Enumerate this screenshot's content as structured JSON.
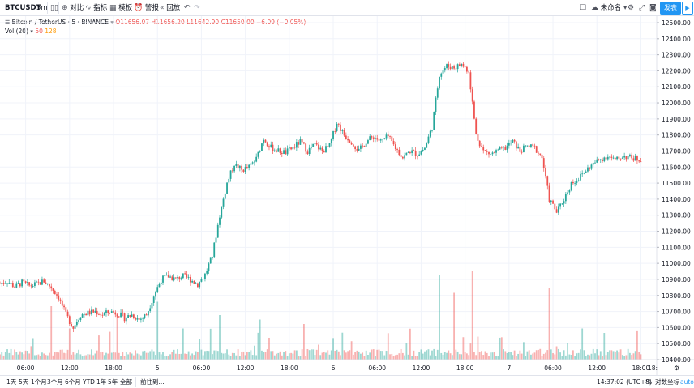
{
  "toolbar": {
    "symbol": "BTCUSDT",
    "interval": "5m",
    "compare_label": "对比",
    "indicators_label": "指标",
    "templates_label": "模板",
    "alert_label": "警报",
    "replay_label": "回放",
    "unnamed_label": "未命名",
    "publish_label": "发表"
  },
  "legend": {
    "title": "Bitcoin / TetherUS · 5 · BINANCE",
    "open": "O11656.07",
    "high": "H11656.20",
    "low": "L11642.90",
    "close": "C11650.00",
    "change": "−6.09 (−0.05%)",
    "volume_label": "Vol (20)",
    "volume_value": "50",
    "volume_ma": "128"
  },
  "colors": {
    "up": "#26a69a",
    "down": "#ef5350",
    "grid": "#f0f3fa",
    "accent": "#2196f3"
  },
  "chart_data": {
    "type": "candlestick",
    "y_range": [
      10350,
      12550
    ],
    "y_ticks": [
      "12500.00",
      "12400.00",
      "12300.00",
      "12200.00",
      "12100.00",
      "12000.00",
      "11900.00",
      "11800.00",
      "11700.00",
      "11600.00",
      "11500.00",
      "11400.00",
      "11300.00",
      "11200.00",
      "11100.00",
      "11000.00",
      "10900.00",
      "10800.00",
      "10700.00",
      "10600.00",
      "10500.00",
      "10400.00"
    ],
    "y_tick_values": [
      12500,
      12400,
      12300,
      12200,
      12100,
      12000,
      11900,
      11800,
      11700,
      11600,
      11500,
      11400,
      11300,
      11200,
      11100,
      11000,
      10900,
      10800,
      10700,
      10600,
      10500,
      10400
    ],
    "x_tick_labels": [
      "06:00",
      "12:00",
      "18:00",
      "5",
      "06:00",
      "12:00",
      "18:00",
      "6",
      "06:00",
      "12:00",
      "18:00",
      "7",
      "06:00",
      "12:00",
      "18:00"
    ],
    "x_tick_hours": [
      6,
      12,
      18,
      24,
      30,
      36,
      42,
      48,
      54,
      60,
      66,
      72,
      78,
      84,
      90
    ],
    "x_range_hours": [
      2.5,
      91.5
    ],
    "close_path": [
      [
        2.5,
        10875
      ],
      [
        3.5,
        10890
      ],
      [
        4.5,
        10855
      ],
      [
        5.5,
        10880
      ],
      [
        6.5,
        10860
      ],
      [
        7.5,
        10870
      ],
      [
        8.5,
        10890
      ],
      [
        9.5,
        10850
      ],
      [
        10.5,
        10790
      ],
      [
        11.5,
        10680
      ],
      [
        12.5,
        10600
      ],
      [
        13.5,
        10680
      ],
      [
        14.5,
        10690
      ],
      [
        15.5,
        10700
      ],
      [
        16.5,
        10680
      ],
      [
        17.5,
        10700
      ],
      [
        18.5,
        10690
      ],
      [
        19.5,
        10660
      ],
      [
        20.5,
        10680
      ],
      [
        21.5,
        10650
      ],
      [
        22.5,
        10680
      ],
      [
        23.5,
        10800
      ],
      [
        24.5,
        10900
      ],
      [
        25.5,
        10920
      ],
      [
        26.5,
        10900
      ],
      [
        27.5,
        10920
      ],
      [
        28.5,
        10900
      ],
      [
        29.5,
        10870
      ],
      [
        30.5,
        10930
      ],
      [
        31.5,
        11050
      ],
      [
        32.5,
        11300
      ],
      [
        33.5,
        11500
      ],
      [
        34.5,
        11620
      ],
      [
        35.5,
        11580
      ],
      [
        36.5,
        11600
      ],
      [
        37.5,
        11650
      ],
      [
        38.5,
        11780
      ],
      [
        39.5,
        11720
      ],
      [
        40.5,
        11700
      ],
      [
        41.5,
        11690
      ],
      [
        42.5,
        11720
      ],
      [
        43.5,
        11760
      ],
      [
        44.5,
        11700
      ],
      [
        45.5,
        11740
      ],
      [
        46.5,
        11700
      ],
      [
        47.5,
        11730
      ],
      [
        48.5,
        11880
      ],
      [
        49.5,
        11800
      ],
      [
        50.5,
        11760
      ],
      [
        51.5,
        11700
      ],
      [
        52.5,
        11760
      ],
      [
        53.5,
        11790
      ],
      [
        54.5,
        11760
      ],
      [
        55.5,
        11790
      ],
      [
        56.5,
        11720
      ],
      [
        57.5,
        11660
      ],
      [
        58.5,
        11700
      ],
      [
        59.5,
        11680
      ],
      [
        60.5,
        11720
      ],
      [
        61.5,
        11850
      ],
      [
        62.5,
        12180
      ],
      [
        63.5,
        12230
      ],
      [
        64.5,
        12220
      ],
      [
        65.5,
        12240
      ],
      [
        66.5,
        12200
      ],
      [
        67.5,
        11800
      ],
      [
        68.5,
        11700
      ],
      [
        69.5,
        11680
      ],
      [
        70.5,
        11700
      ],
      [
        71.5,
        11720
      ],
      [
        72.5,
        11760
      ],
      [
        73.5,
        11700
      ],
      [
        74.5,
        11730
      ],
      [
        75.5,
        11720
      ],
      [
        76.5,
        11660
      ],
      [
        77.5,
        11400
      ],
      [
        78.5,
        11320
      ],
      [
        79.5,
        11400
      ],
      [
        80.5,
        11500
      ],
      [
        81.5,
        11530
      ],
      [
        82.5,
        11580
      ],
      [
        83.5,
        11620
      ],
      [
        84.5,
        11650
      ],
      [
        85.5,
        11670
      ],
      [
        86.5,
        11640
      ],
      [
        87.5,
        11670
      ],
      [
        88.5,
        11660
      ],
      [
        89.5,
        11650
      ]
    ],
    "volume_spikes": [
      [
        9.5,
        0.6
      ],
      [
        12,
        0.35
      ],
      [
        18.5,
        0.5
      ],
      [
        24,
        0.65
      ],
      [
        27.5,
        0.35
      ],
      [
        32.5,
        0.5
      ],
      [
        38,
        0.45
      ],
      [
        44,
        0.4
      ],
      [
        58,
        0.85
      ],
      [
        62.5,
        0.95
      ],
      [
        64.5,
        0.75
      ],
      [
        67,
        1.0
      ],
      [
        77.5,
        0.8
      ],
      [
        82,
        0.35
      ],
      [
        85,
        0.3
      ]
    ]
  },
  "x_axis_extra": "18:",
  "bottom": {
    "ranges": [
      "1天",
      "5天",
      "1个月",
      "3个月",
      "6个月",
      "YTD",
      "1年",
      "5年",
      "全部"
    ],
    "goto_label": "前往到...",
    "time": "14:37:02 (UTC+8)",
    "percent_label": "%",
    "log_label": "对数坐标",
    "auto_label": "auto"
  }
}
